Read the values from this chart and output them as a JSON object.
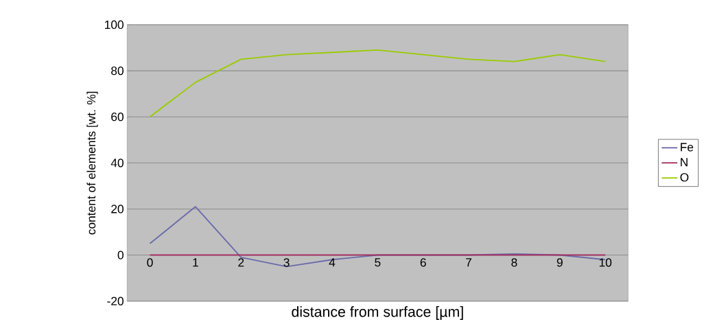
{
  "chart_data": {
    "type": "line",
    "xlabel": "distance from surface [µm]",
    "ylabel": "content of elements [wt. %]",
    "categories": [
      "0",
      "1",
      "2",
      "3",
      "4",
      "5",
      "6",
      "7",
      "8",
      "9",
      "10"
    ],
    "series": [
      {
        "name": "Fe",
        "color": "#6b6bab",
        "values": [
          5,
          21,
          -1,
          -5,
          -2,
          0,
          0,
          0,
          0.5,
          0,
          -2
        ]
      },
      {
        "name": "N",
        "color": "#a0305f",
        "values": [
          0,
          0,
          0,
          0,
          0,
          0,
          0,
          0,
          0,
          0,
          0
        ]
      },
      {
        "name": "O",
        "color": "#99cc00",
        "values": [
          60,
          75,
          85,
          87,
          88,
          89,
          87,
          85,
          84,
          87,
          84
        ]
      }
    ],
    "ylim": [
      -20,
      100
    ],
    "yticks": [
      -20,
      0,
      20,
      40,
      60,
      80,
      100
    ],
    "grid": "y",
    "legend": "right",
    "marker": "none",
    "line_style": "solid"
  }
}
